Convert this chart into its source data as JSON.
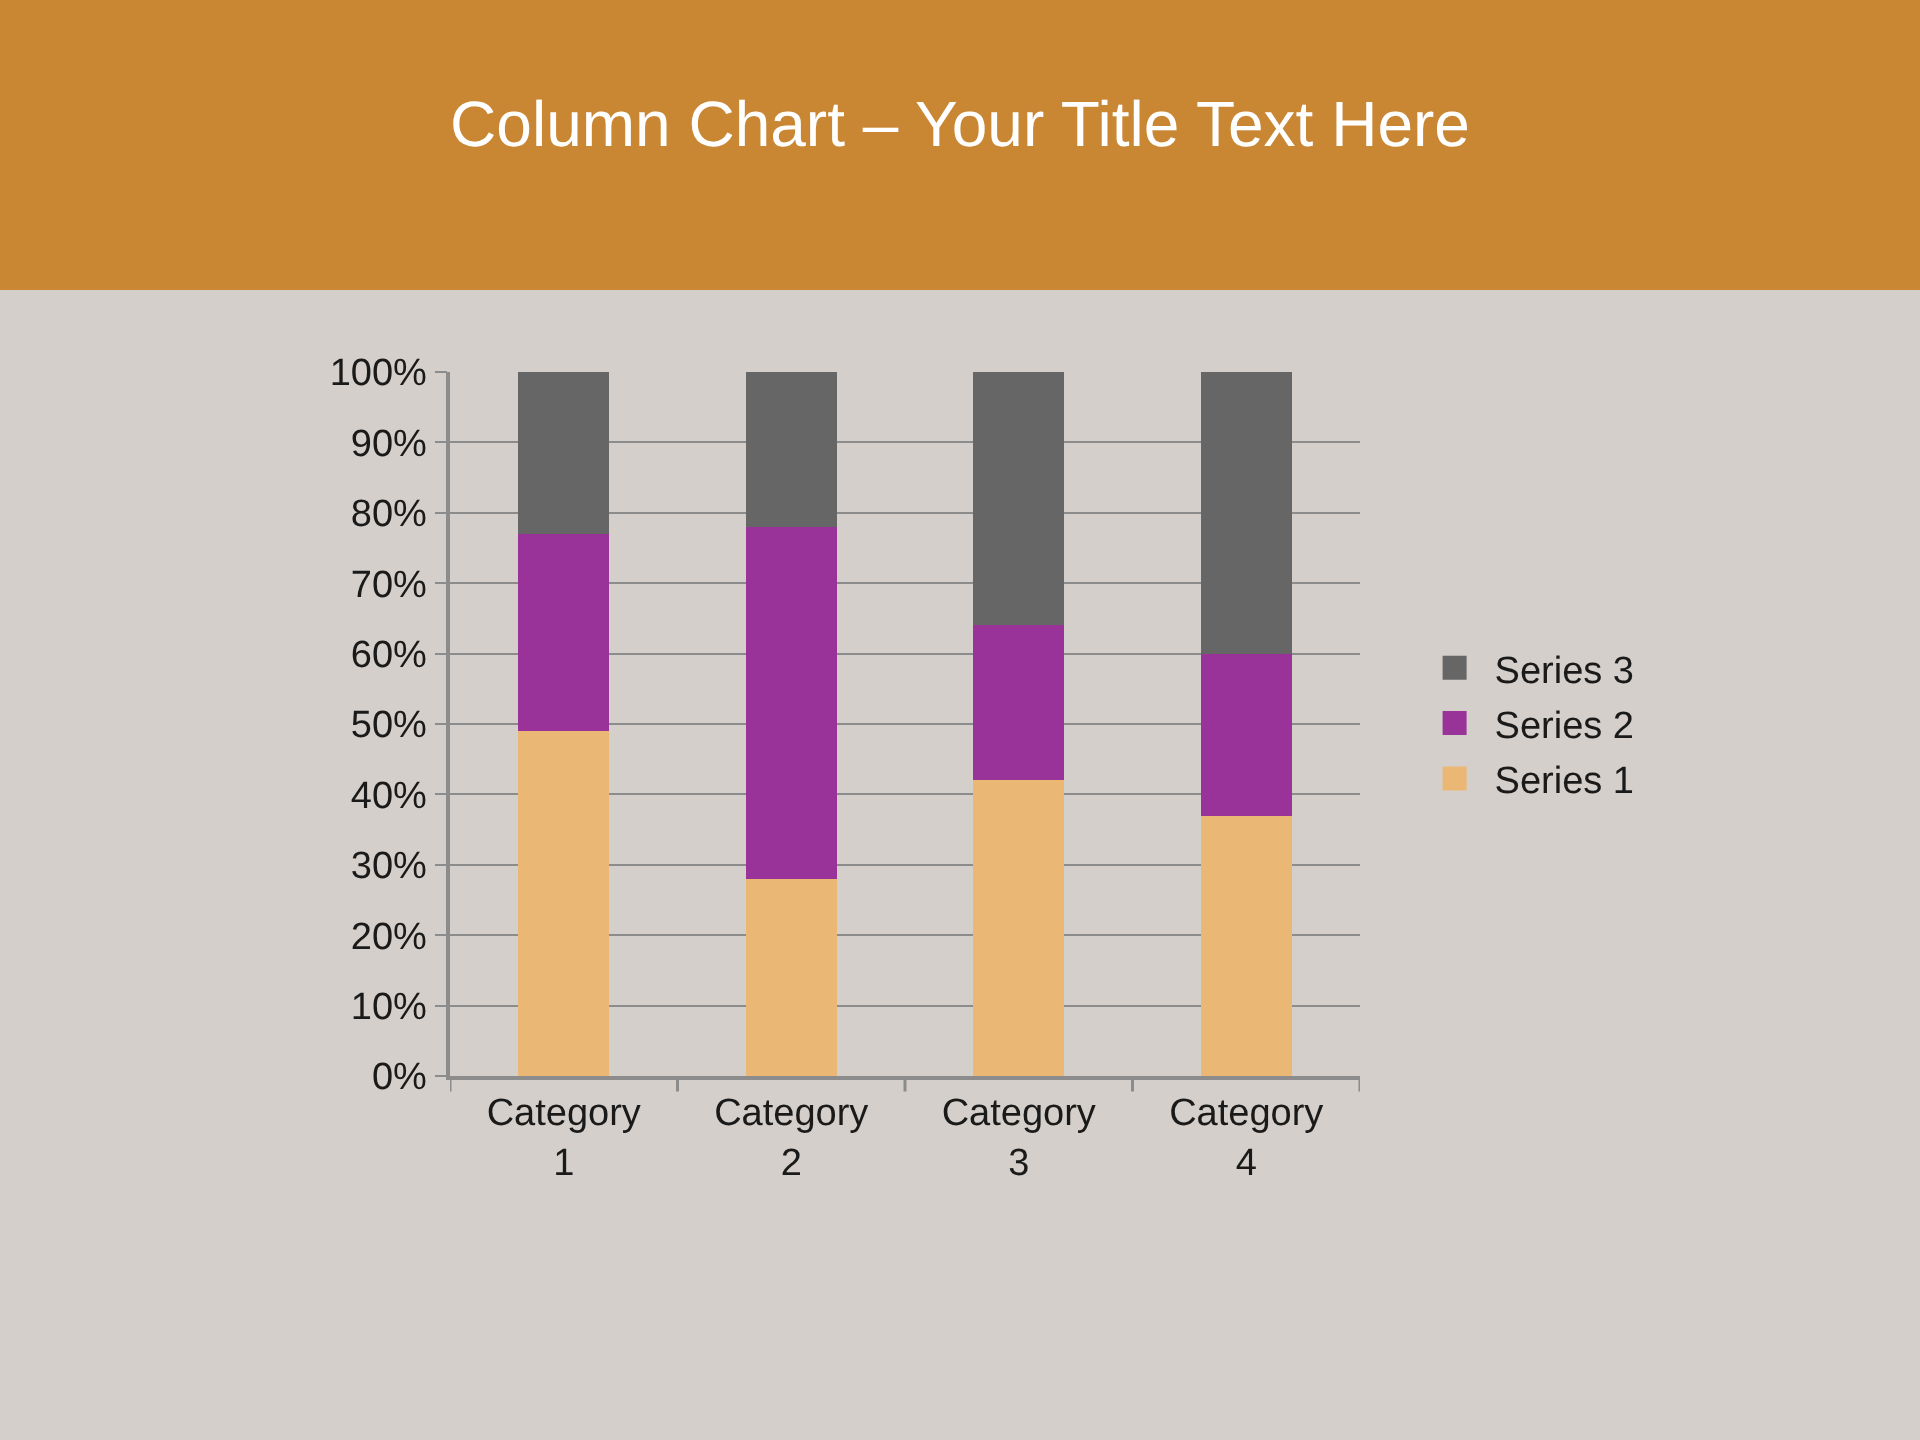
{
  "chart_data": {
    "type": "bar",
    "stacked": true,
    "title": "Column Chart – Your Title Text Here",
    "categories": [
      "Category 1",
      "Category 2",
      "Category 3",
      "Category 4"
    ],
    "series": [
      {
        "name": "Series 1",
        "color": "#ebb775",
        "values": [
          49,
          28,
          42,
          37
        ]
      },
      {
        "name": "Series 2",
        "color": "#993399",
        "values": [
          28,
          50,
          22,
          23
        ]
      },
      {
        "name": "Series 3",
        "color": "#666666",
        "values": [
          23,
          22,
          36,
          40
        ]
      }
    ],
    "ylim": [
      0,
      100
    ],
    "yticks": [
      {
        "value": 0,
        "label": "0%"
      },
      {
        "value": 10,
        "label": "10%"
      },
      {
        "value": 20,
        "label": "20%"
      },
      {
        "value": 30,
        "label": "30%"
      },
      {
        "value": 40,
        "label": "40%"
      },
      {
        "value": 50,
        "label": "50%"
      },
      {
        "value": 60,
        "label": "60%"
      },
      {
        "value": 70,
        "label": "70%"
      },
      {
        "value": 80,
        "label": "80%"
      },
      {
        "value": 90,
        "label": "90%"
      },
      {
        "value": 100,
        "label": "100%"
      }
    ],
    "grid": "y",
    "legend": "right"
  }
}
